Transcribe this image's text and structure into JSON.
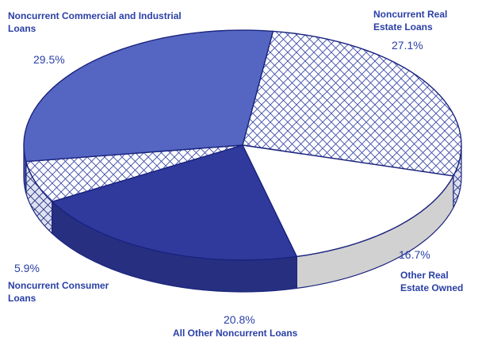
{
  "chart_data": {
    "type": "pie",
    "three_d": true,
    "slices": [
      {
        "label": "Noncurrent Real Estate Loans",
        "percent_label": "27.1%",
        "value": 27.1,
        "fill": "crosshatch",
        "color": "#ffffff"
      },
      {
        "label": "Other Real Estate Owned",
        "percent_label": "16.7%",
        "value": 16.7,
        "fill": "solid",
        "color": "#ffffff"
      },
      {
        "label": "All Other Noncurrent Loans",
        "percent_label": "20.8%",
        "value": 20.8,
        "fill": "solid",
        "color": "#2f3a9c"
      },
      {
        "label": "Noncurrent Consumer Loans",
        "percent_label": "5.9%",
        "value": 5.9,
        "fill": "crosshatch",
        "color": "#ffffff"
      },
      {
        "label": "Noncurrent Commercial and Industrial Loans",
        "percent_label": "29.5%",
        "value": 29.5,
        "fill": "solid",
        "color": "#5566c2"
      }
    ],
    "title": "",
    "label_color": "#2a3fa6",
    "outline_color": "#1a237e"
  }
}
